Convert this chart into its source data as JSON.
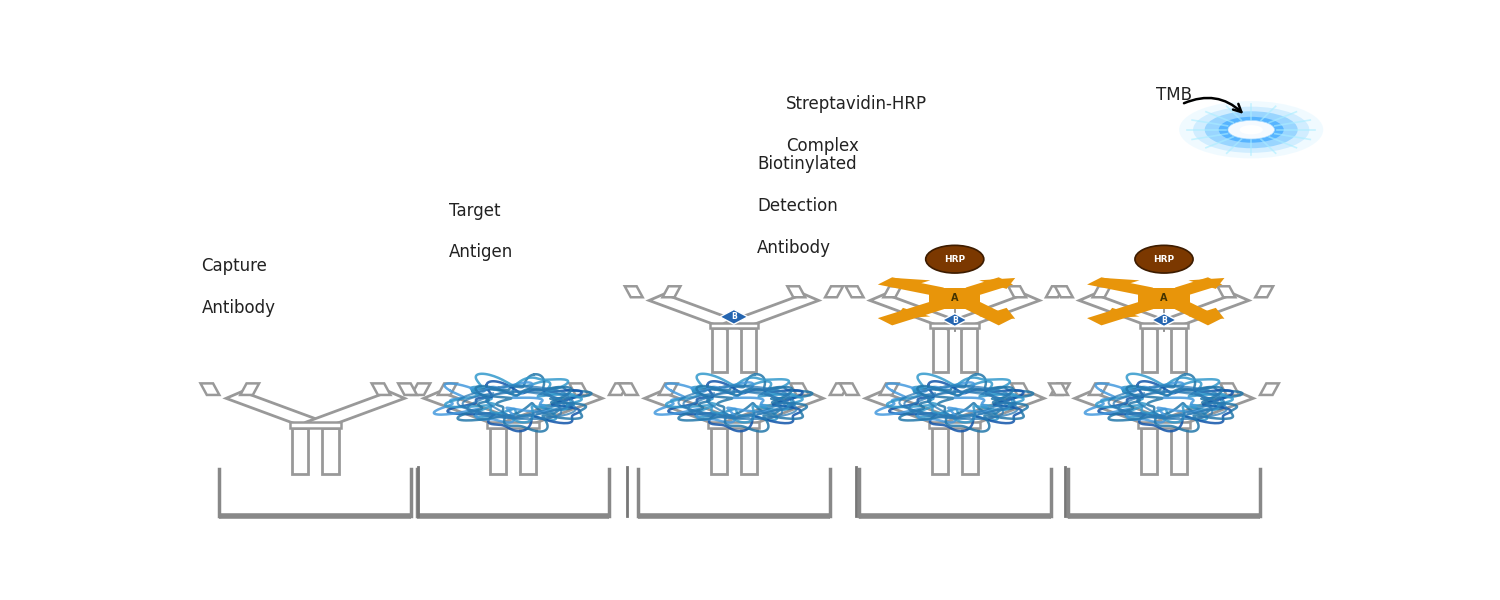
{
  "background_color": "#ffffff",
  "ab_color": "#999999",
  "antigen_color": "#2a7ab5",
  "biotin_color": "#2565b0",
  "strep_orange": "#e8950a",
  "hrp_brown": "#7B3800",
  "text_color": "#222222",
  "panels": [
    0.11,
    0.28,
    0.47,
    0.66,
    0.84
  ],
  "labels": {
    "capture": [
      "Capture",
      "Antibody"
    ],
    "target": [
      "Target",
      "Antigen"
    ],
    "biotin": [
      "Biotinylated",
      "Detection",
      "Antibody"
    ],
    "strep": [
      "Streptavidin-HRP",
      "Complex"
    ],
    "tmb": [
      "TMB"
    ]
  }
}
